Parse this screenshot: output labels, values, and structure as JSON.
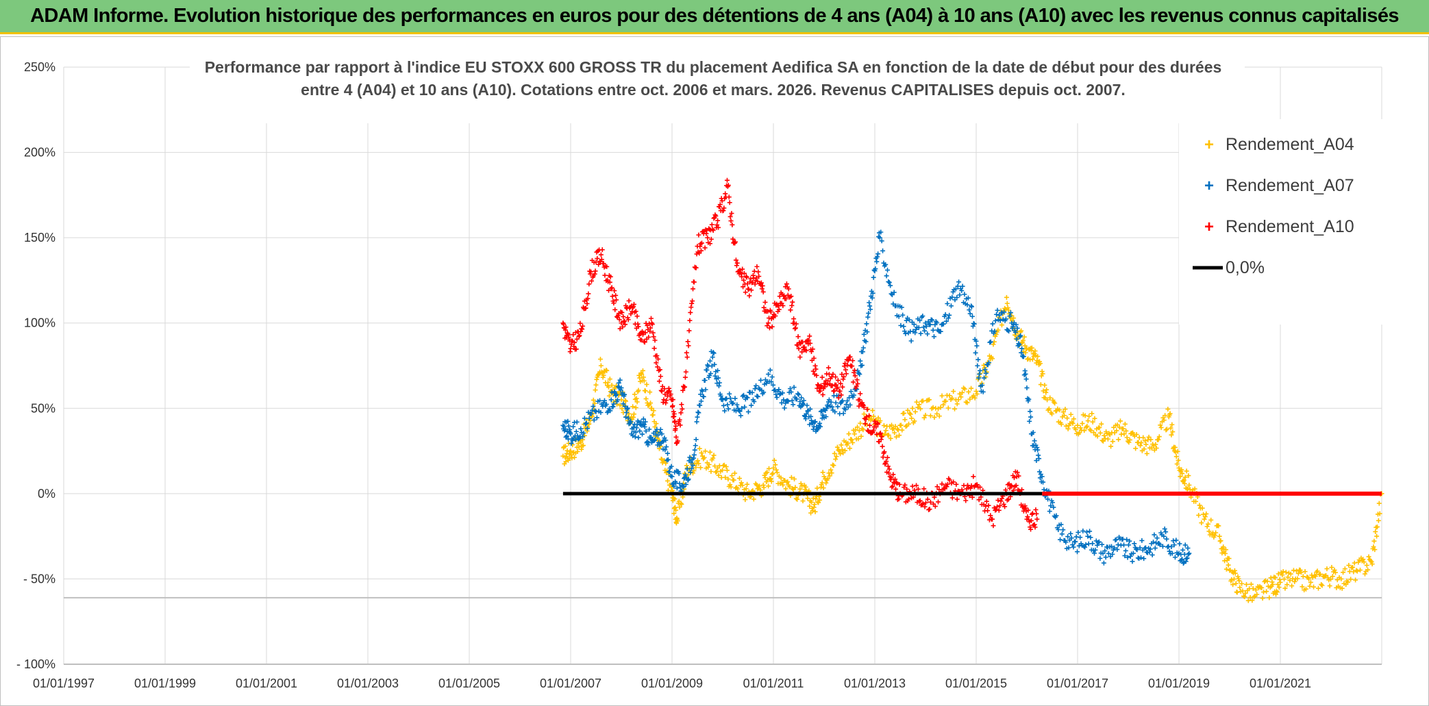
{
  "header": {
    "title": "ADAM Informe. Evolution historique des performances en euros pour des détentions de 4 ans (A04) à 10 ans (A10) avec les revenus connus capitalisés"
  },
  "colors": {
    "banner": "#7dc87d",
    "banner_accent": "#f2c100",
    "grid": "#d9d9d9",
    "zero_line": "#000000"
  },
  "chart_data": {
    "type": "scatter",
    "title_lines": [
      "Performance par rapport à l'indice EU STOXX 600 GROSS TR  du placement Aedifica SA en fonction de la date de début pour des durées",
      "entre 4 (A04) et 10 ans (A10). Cotations entre oct. 2006 et mars. 2026. Revenus CAPITALISES depuis oct. 2007."
    ],
    "xlabel": "",
    "ylabel": "",
    "x_tick_labels": [
      "01/01/1997",
      "01/01/1999",
      "01/01/2001",
      "01/01/2003",
      "01/01/2005",
      "01/01/2007",
      "01/01/2009",
      "01/01/2011",
      "01/01/2013",
      "01/01/2015",
      "01/01/2017",
      "01/01/2019",
      "01/01/2021"
    ],
    "x_range_years": [
      1997.0,
      2023.0
    ],
    "y_tick_labels": [
      "250%",
      "200%",
      "150%",
      "100%",
      "50%",
      "0%",
      "- 50%",
      "- 100%"
    ],
    "y_tick_values": [
      250,
      200,
      150,
      100,
      50,
      0,
      -50,
      -100
    ],
    "ylim": [
      -100,
      250
    ],
    "legend_position": "top-right",
    "series": [
      {
        "name": "Rendement_A04",
        "color": "#ffc000",
        "marker": "+",
        "x": [
          2006.85,
          2007.0,
          2007.2,
          2007.4,
          2007.6,
          2007.8,
          2008.0,
          2008.2,
          2008.4,
          2008.6,
          2008.8,
          2009.0,
          2009.1,
          2009.3,
          2009.6,
          2009.9,
          2010.2,
          2010.5,
          2010.8,
          2011.0,
          2011.3,
          2011.6,
          2011.8,
          2012.0,
          2012.3,
          2012.6,
          2012.9,
          2013.2,
          2013.5,
          2013.8,
          2014.2,
          2014.6,
          2015.0,
          2015.3,
          2015.6,
          2015.8,
          2016.0,
          2016.2,
          2016.4,
          2016.7,
          2017.0,
          2017.3,
          2017.6,
          2017.9,
          2018.2,
          2018.5,
          2018.8,
          2019.0,
          2019.2,
          2019.5,
          2019.8,
          2020.0,
          2020.2,
          2020.5,
          2020.8,
          2021.0,
          2021.3,
          2021.6,
          2021.9,
          2022.2,
          2022.5,
          2022.8,
          2023.0
        ],
        "y": [
          22,
          25,
          30,
          45,
          75,
          60,
          55,
          45,
          70,
          50,
          20,
          0,
          -15,
          15,
          22,
          15,
          8,
          0,
          5,
          15,
          5,
          0,
          -8,
          10,
          25,
          35,
          45,
          35,
          40,
          48,
          50,
          55,
          60,
          80,
          115,
          95,
          85,
          78,
          55,
          45,
          40,
          42,
          32,
          38,
          30,
          28,
          45,
          15,
          5,
          -15,
          -25,
          -45,
          -55,
          -60,
          -55,
          -52,
          -50,
          -52,
          -48,
          -50,
          -45,
          -40,
          0
        ]
      },
      {
        "name": "Rendement_A07",
        "color": "#0070c0",
        "marker": "+",
        "x": [
          2006.85,
          2007.0,
          2007.2,
          2007.5,
          2007.8,
          2008.0,
          2008.2,
          2008.4,
          2008.6,
          2008.8,
          2009.0,
          2009.2,
          2009.4,
          2009.6,
          2009.8,
          2010.0,
          2010.3,
          2010.6,
          2010.9,
          2011.2,
          2011.5,
          2011.7,
          2011.9,
          2012.1,
          2012.4,
          2012.7,
          2012.9,
          2013.1,
          2013.4,
          2013.7,
          2014.0,
          2014.3,
          2014.6,
          2014.9,
          2015.1,
          2015.4,
          2015.7,
          2015.9,
          2016.1,
          2016.3,
          2016.6,
          2016.9,
          2017.2,
          2017.5,
          2017.8,
          2018.1,
          2018.4,
          2018.7,
          2019.0,
          2019.2
        ],
        "y": [
          40,
          35,
          38,
          48,
          55,
          62,
          35,
          40,
          30,
          35,
          10,
          5,
          20,
          60,
          80,
          55,
          50,
          55,
          70,
          55,
          58,
          45,
          40,
          55,
          50,
          70,
          110,
          150,
          110,
          95,
          100,
          95,
          120,
          110,
          60,
          105,
          100,
          85,
          35,
          10,
          -20,
          -30,
          -25,
          -35,
          -30,
          -35,
          -32,
          -25,
          -35,
          -35
        ]
      },
      {
        "name": "Rendement_A10",
        "color": "#ff0000",
        "marker": "+",
        "x": [
          2006.85,
          2007.0,
          2007.2,
          2007.4,
          2007.6,
          2007.8,
          2008.0,
          2008.2,
          2008.4,
          2008.6,
          2008.8,
          2009.0,
          2009.1,
          2009.3,
          2009.5,
          2009.7,
          2009.9,
          2010.1,
          2010.3,
          2010.5,
          2010.7,
          2010.9,
          2011.1,
          2011.3,
          2011.5,
          2011.7,
          2011.9,
          2012.1,
          2012.3,
          2012.5,
          2012.7,
          2012.9,
          2013.1,
          2013.3,
          2013.5,
          2013.8,
          2014.1,
          2014.4,
          2014.7,
          2015.0,
          2015.3,
          2015.6,
          2015.8,
          2016.0,
          2016.2
        ],
        "y": [
          100,
          85,
          95,
          130,
          140,
          120,
          100,
          110,
          90,
          100,
          60,
          55,
          30,
          80,
          145,
          150,
          160,
          180,
          130,
          120,
          130,
          100,
          110,
          120,
          85,
          90,
          60,
          70,
          60,
          80,
          55,
          40,
          35,
          10,
          0,
          0,
          -5,
          5,
          0,
          5,
          -15,
          0,
          10,
          -15,
          -15
        ]
      }
    ],
    "extra_series": [
      {
        "name": "A10_flat",
        "color": "#ff0000",
        "x_range": [
          2016.3,
          2023.0
        ],
        "y": 0
      }
    ],
    "reference_lines": [
      {
        "name": "0,0%",
        "value": 0,
        "x_range": [
          2006.85,
          2016.3
        ],
        "color": "#000000"
      }
    ]
  }
}
